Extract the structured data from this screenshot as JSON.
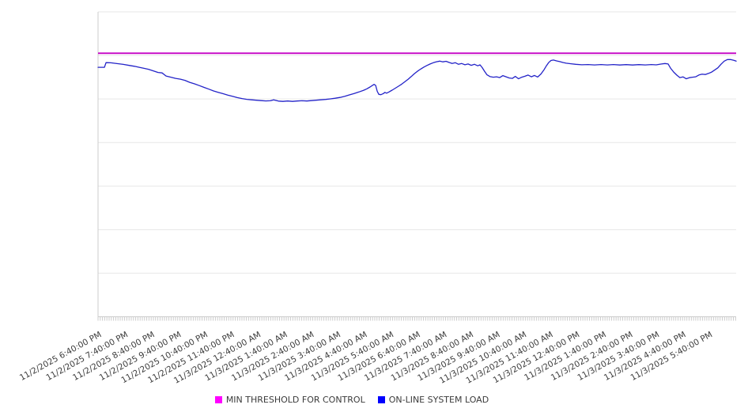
{
  "chart_data": {
    "type": "line",
    "title": "",
    "x_axis": {
      "labels": [
        "11/2/2025 6:40:00 PM",
        "11/2/2025 7:40:00 PM",
        "11/2/2025 8:40:00 PM",
        "11/2/2025 9:40:00 PM",
        "11/2/2025 10:40:00 PM",
        "11/2/2025 11:40:00 PM",
        "11/3/2025 12:40:00 AM",
        "11/3/2025 1:40:00 AM",
        "11/3/2025 2:40:00 AM",
        "11/3/2025 3:40:00 AM",
        "11/3/2025 4:40:00 AM",
        "11/3/2025 5:40:00 AM",
        "11/3/2025 6:40:00 AM",
        "11/3/2025 7:40:00 AM",
        "11/3/2025 8:40:00 AM",
        "11/3/2025 9:40:00 AM",
        "11/3/2025 10:40:00 AM",
        "11/3/2025 11:40:00 AM",
        "11/3/2025 12:40:00 PM",
        "11/3/2025 1:40:00 PM",
        "11/3/2025 2:40:00 PM",
        "11/3/2025 3:40:00 PM",
        "11/3/2025 4:40:00 PM",
        "11/3/2025 5:40:00 PM"
      ],
      "label_interval_hours": 1,
      "minor_tick_interval_minutes": 5,
      "label_rotation_deg": -29,
      "range_hours": [
        0,
        24.02
      ]
    },
    "y_axis": {
      "tick_labels_visible": false,
      "units": "unlabeled (gridline units, 0 = bottom axis, 7 = top gridline)",
      "gridlines": 8,
      "ylim": [
        0,
        7
      ]
    },
    "grid": true,
    "legend_position": "bottom-center",
    "series": [
      {
        "name": "MIN THRESHOLD FOR CONTROL",
        "type": "constant-line",
        "color": "#c400c4",
        "legend_color": "#ff00ff",
        "value": 6.05
      },
      {
        "name": "ON-LINE SYSTEM LOAD",
        "type": "line",
        "color": "#2323c8",
        "legend_color": "#0000ff",
        "points": [
          [
            0,
            5.727
          ],
          [
            0.24,
            5.727
          ],
          [
            0.3,
            5.835
          ],
          [
            0.48,
            5.83
          ],
          [
            0.71,
            5.812
          ],
          [
            0.95,
            5.794
          ],
          [
            1.19,
            5.768
          ],
          [
            1.37,
            5.75
          ],
          [
            1.55,
            5.727
          ],
          [
            1.73,
            5.703
          ],
          [
            1.9,
            5.682
          ],
          [
            2.08,
            5.645
          ],
          [
            2.26,
            5.609
          ],
          [
            2.41,
            5.598
          ],
          [
            2.56,
            5.527
          ],
          [
            2.74,
            5.5
          ],
          [
            2.92,
            5.473
          ],
          [
            3.1,
            5.455
          ],
          [
            3.27,
            5.428
          ],
          [
            3.45,
            5.383
          ],
          [
            3.63,
            5.347
          ],
          [
            3.81,
            5.307
          ],
          [
            3.99,
            5.266
          ],
          [
            4.17,
            5.226
          ],
          [
            4.35,
            5.185
          ],
          [
            4.52,
            5.154
          ],
          [
            4.7,
            5.122
          ],
          [
            4.88,
            5.089
          ],
          [
            5.06,
            5.062
          ],
          [
            5.24,
            5.031
          ],
          [
            5.42,
            5.01
          ],
          [
            5.6,
            4.992
          ],
          [
            5.77,
            4.981
          ],
          [
            5.95,
            4.972
          ],
          [
            6.13,
            4.963
          ],
          [
            6.31,
            4.956
          ],
          [
            6.49,
            4.959
          ],
          [
            6.61,
            4.979
          ],
          [
            6.79,
            4.952
          ],
          [
            6.96,
            4.944
          ],
          [
            7.14,
            4.954
          ],
          [
            7.32,
            4.944
          ],
          [
            7.5,
            4.954
          ],
          [
            7.68,
            4.959
          ],
          [
            7.86,
            4.954
          ],
          [
            8.04,
            4.963
          ],
          [
            8.21,
            4.972
          ],
          [
            8.39,
            4.981
          ],
          [
            8.57,
            4.99
          ],
          [
            8.75,
            5.002
          ],
          [
            8.93,
            5.017
          ],
          [
            9.11,
            5.035
          ],
          [
            9.29,
            5.062
          ],
          [
            9.46,
            5.093
          ],
          [
            9.64,
            5.125
          ],
          [
            9.82,
            5.161
          ],
          [
            10.0,
            5.201
          ],
          [
            10.12,
            5.233
          ],
          [
            10.24,
            5.275
          ],
          [
            10.33,
            5.314
          ],
          [
            10.39,
            5.334
          ],
          [
            10.45,
            5.311
          ],
          [
            10.51,
            5.176
          ],
          [
            10.57,
            5.107
          ],
          [
            10.65,
            5.098
          ],
          [
            10.74,
            5.125
          ],
          [
            10.8,
            5.152
          ],
          [
            10.86,
            5.134
          ],
          [
            10.95,
            5.161
          ],
          [
            11.07,
            5.203
          ],
          [
            11.19,
            5.248
          ],
          [
            11.31,
            5.293
          ],
          [
            11.43,
            5.341
          ],
          [
            11.55,
            5.395
          ],
          [
            11.67,
            5.453
          ],
          [
            11.79,
            5.514
          ],
          [
            11.9,
            5.576
          ],
          [
            12.02,
            5.635
          ],
          [
            12.14,
            5.685
          ],
          [
            12.26,
            5.73
          ],
          [
            12.38,
            5.768
          ],
          [
            12.5,
            5.804
          ],
          [
            12.62,
            5.833
          ],
          [
            12.74,
            5.855
          ],
          [
            12.86,
            5.869
          ],
          [
            12.98,
            5.853
          ],
          [
            13.1,
            5.866
          ],
          [
            13.21,
            5.84
          ],
          [
            13.33,
            5.815
          ],
          [
            13.45,
            5.833
          ],
          [
            13.57,
            5.797
          ],
          [
            13.69,
            5.815
          ],
          [
            13.81,
            5.786
          ],
          [
            13.93,
            5.804
          ],
          [
            14.05,
            5.772
          ],
          [
            14.17,
            5.797
          ],
          [
            14.29,
            5.761
          ],
          [
            14.38,
            5.783
          ],
          [
            14.46,
            5.721
          ],
          [
            14.55,
            5.636
          ],
          [
            14.64,
            5.554
          ],
          [
            14.76,
            5.513
          ],
          [
            14.88,
            5.5
          ],
          [
            15.0,
            5.509
          ],
          [
            15.12,
            5.491
          ],
          [
            15.24,
            5.536
          ],
          [
            15.36,
            5.509
          ],
          [
            15.48,
            5.482
          ],
          [
            15.6,
            5.473
          ],
          [
            15.71,
            5.518
          ],
          [
            15.83,
            5.464
          ],
          [
            15.95,
            5.5
          ],
          [
            16.07,
            5.522
          ],
          [
            16.19,
            5.549
          ],
          [
            16.31,
            5.509
          ],
          [
            16.43,
            5.54
          ],
          [
            16.55,
            5.504
          ],
          [
            16.67,
            5.573
          ],
          [
            16.79,
            5.672
          ],
          [
            16.88,
            5.763
          ],
          [
            16.96,
            5.835
          ],
          [
            17.05,
            5.884
          ],
          [
            17.14,
            5.894
          ],
          [
            17.26,
            5.875
          ],
          [
            17.38,
            5.857
          ],
          [
            17.5,
            5.838
          ],
          [
            17.62,
            5.822
          ],
          [
            17.8,
            5.808
          ],
          [
            17.98,
            5.797
          ],
          [
            18.21,
            5.786
          ],
          [
            18.45,
            5.791
          ],
          [
            18.69,
            5.782
          ],
          [
            18.93,
            5.79
          ],
          [
            19.17,
            5.781
          ],
          [
            19.4,
            5.79
          ],
          [
            19.64,
            5.779
          ],
          [
            19.88,
            5.788
          ],
          [
            20.12,
            5.779
          ],
          [
            20.36,
            5.788
          ],
          [
            20.6,
            5.781
          ],
          [
            20.83,
            5.79
          ],
          [
            21.01,
            5.783
          ],
          [
            21.19,
            5.801
          ],
          [
            21.34,
            5.815
          ],
          [
            21.46,
            5.804
          ],
          [
            21.55,
            5.709
          ],
          [
            21.67,
            5.618
          ],
          [
            21.79,
            5.545
          ],
          [
            21.9,
            5.491
          ],
          [
            22.02,
            5.507
          ],
          [
            22.14,
            5.464
          ],
          [
            22.26,
            5.489
          ],
          [
            22.38,
            5.5
          ],
          [
            22.5,
            5.509
          ],
          [
            22.62,
            5.551
          ],
          [
            22.74,
            5.569
          ],
          [
            22.86,
            5.562
          ],
          [
            22.98,
            5.587
          ],
          [
            23.1,
            5.618
          ],
          [
            23.21,
            5.664
          ],
          [
            23.33,
            5.714
          ],
          [
            23.45,
            5.797
          ],
          [
            23.57,
            5.869
          ],
          [
            23.69,
            5.905
          ],
          [
            23.81,
            5.905
          ],
          [
            23.93,
            5.887
          ],
          [
            24.02,
            5.869
          ]
        ]
      }
    ],
    "colors": {
      "gridline": "#e7e7e7",
      "axis": "#cccccc",
      "axis_label_text": "#3b3b3b",
      "background": "#ffffff"
    }
  }
}
